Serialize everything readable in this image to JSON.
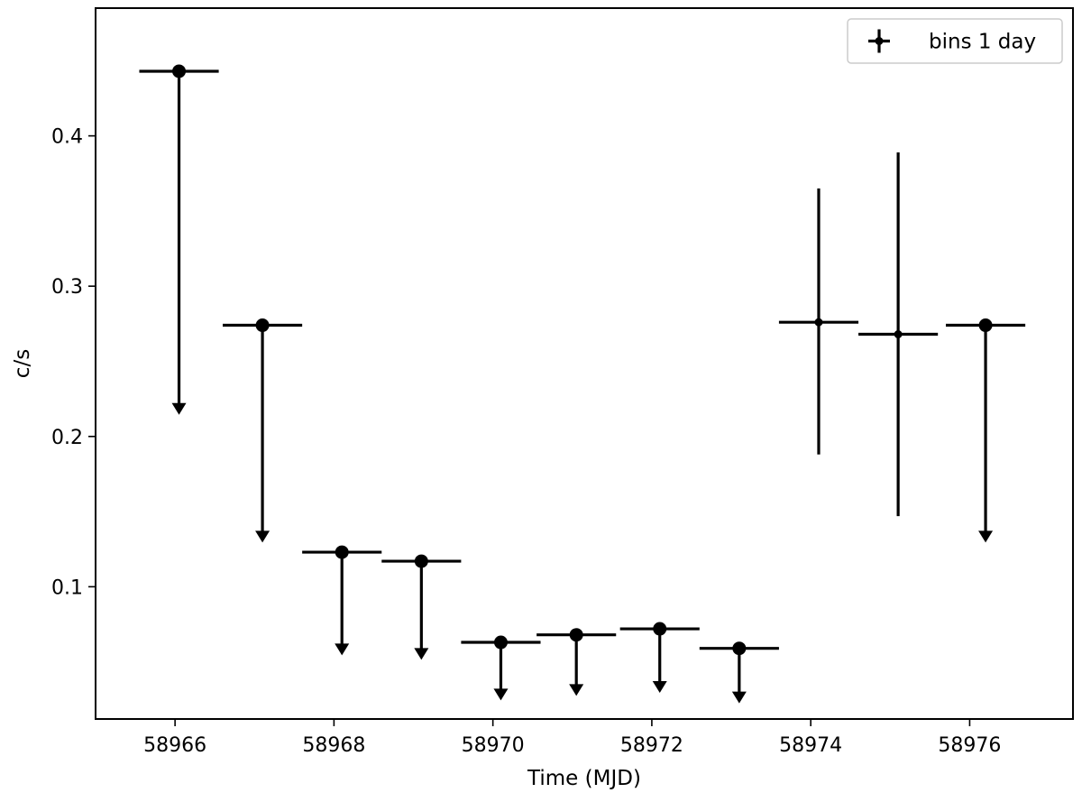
{
  "chart_data": {
    "type": "scatter",
    "title": "",
    "xlabel": "Time (MJD)",
    "ylabel": "c/s",
    "xlim": [
      58965.0,
      58977.3
    ],
    "ylim": [
      0.012,
      0.485
    ],
    "xticks": [
      58966,
      58968,
      58970,
      58972,
      58974,
      58976
    ],
    "yticks": [
      0.1,
      0.2,
      0.3,
      0.4
    ],
    "xtick_labels": [
      "58966",
      "58968",
      "58970",
      "58972",
      "58974",
      "58976"
    ],
    "ytick_labels": [
      "0.1",
      "0.2",
      "0.3",
      "0.4"
    ],
    "grid": false,
    "legend": {
      "position": "top-right",
      "entries": [
        "bins 1 day"
      ]
    },
    "color": "#000000",
    "x_halfwidth": 0.5,
    "series": [
      {
        "name": "bins 1 day",
        "points": [
          {
            "x": 58966.05,
            "y": 0.443,
            "upper_limit": true,
            "arrow_to": 0.215
          },
          {
            "x": 58967.1,
            "y": 0.274,
            "upper_limit": true,
            "arrow_to": 0.13
          },
          {
            "x": 58968.1,
            "y": 0.123,
            "upper_limit": true,
            "arrow_to": 0.055
          },
          {
            "x": 58969.1,
            "y": 0.117,
            "upper_limit": true,
            "arrow_to": 0.052
          },
          {
            "x": 58970.1,
            "y": 0.063,
            "upper_limit": true,
            "arrow_to": 0.025
          },
          {
            "x": 58971.05,
            "y": 0.068,
            "upper_limit": true,
            "arrow_to": 0.028
          },
          {
            "x": 58972.1,
            "y": 0.072,
            "upper_limit": true,
            "arrow_to": 0.03
          },
          {
            "x": 58973.1,
            "y": 0.059,
            "upper_limit": true,
            "arrow_to": 0.023
          },
          {
            "x": 58974.1,
            "y": 0.276,
            "upper_limit": false,
            "yerr_low": 0.188,
            "yerr_high": 0.365
          },
          {
            "x": 58975.1,
            "y": 0.268,
            "upper_limit": false,
            "yerr_low": 0.147,
            "yerr_high": 0.389
          },
          {
            "x": 58976.2,
            "y": 0.274,
            "upper_limit": true,
            "arrow_to": 0.13
          }
        ]
      }
    ]
  }
}
